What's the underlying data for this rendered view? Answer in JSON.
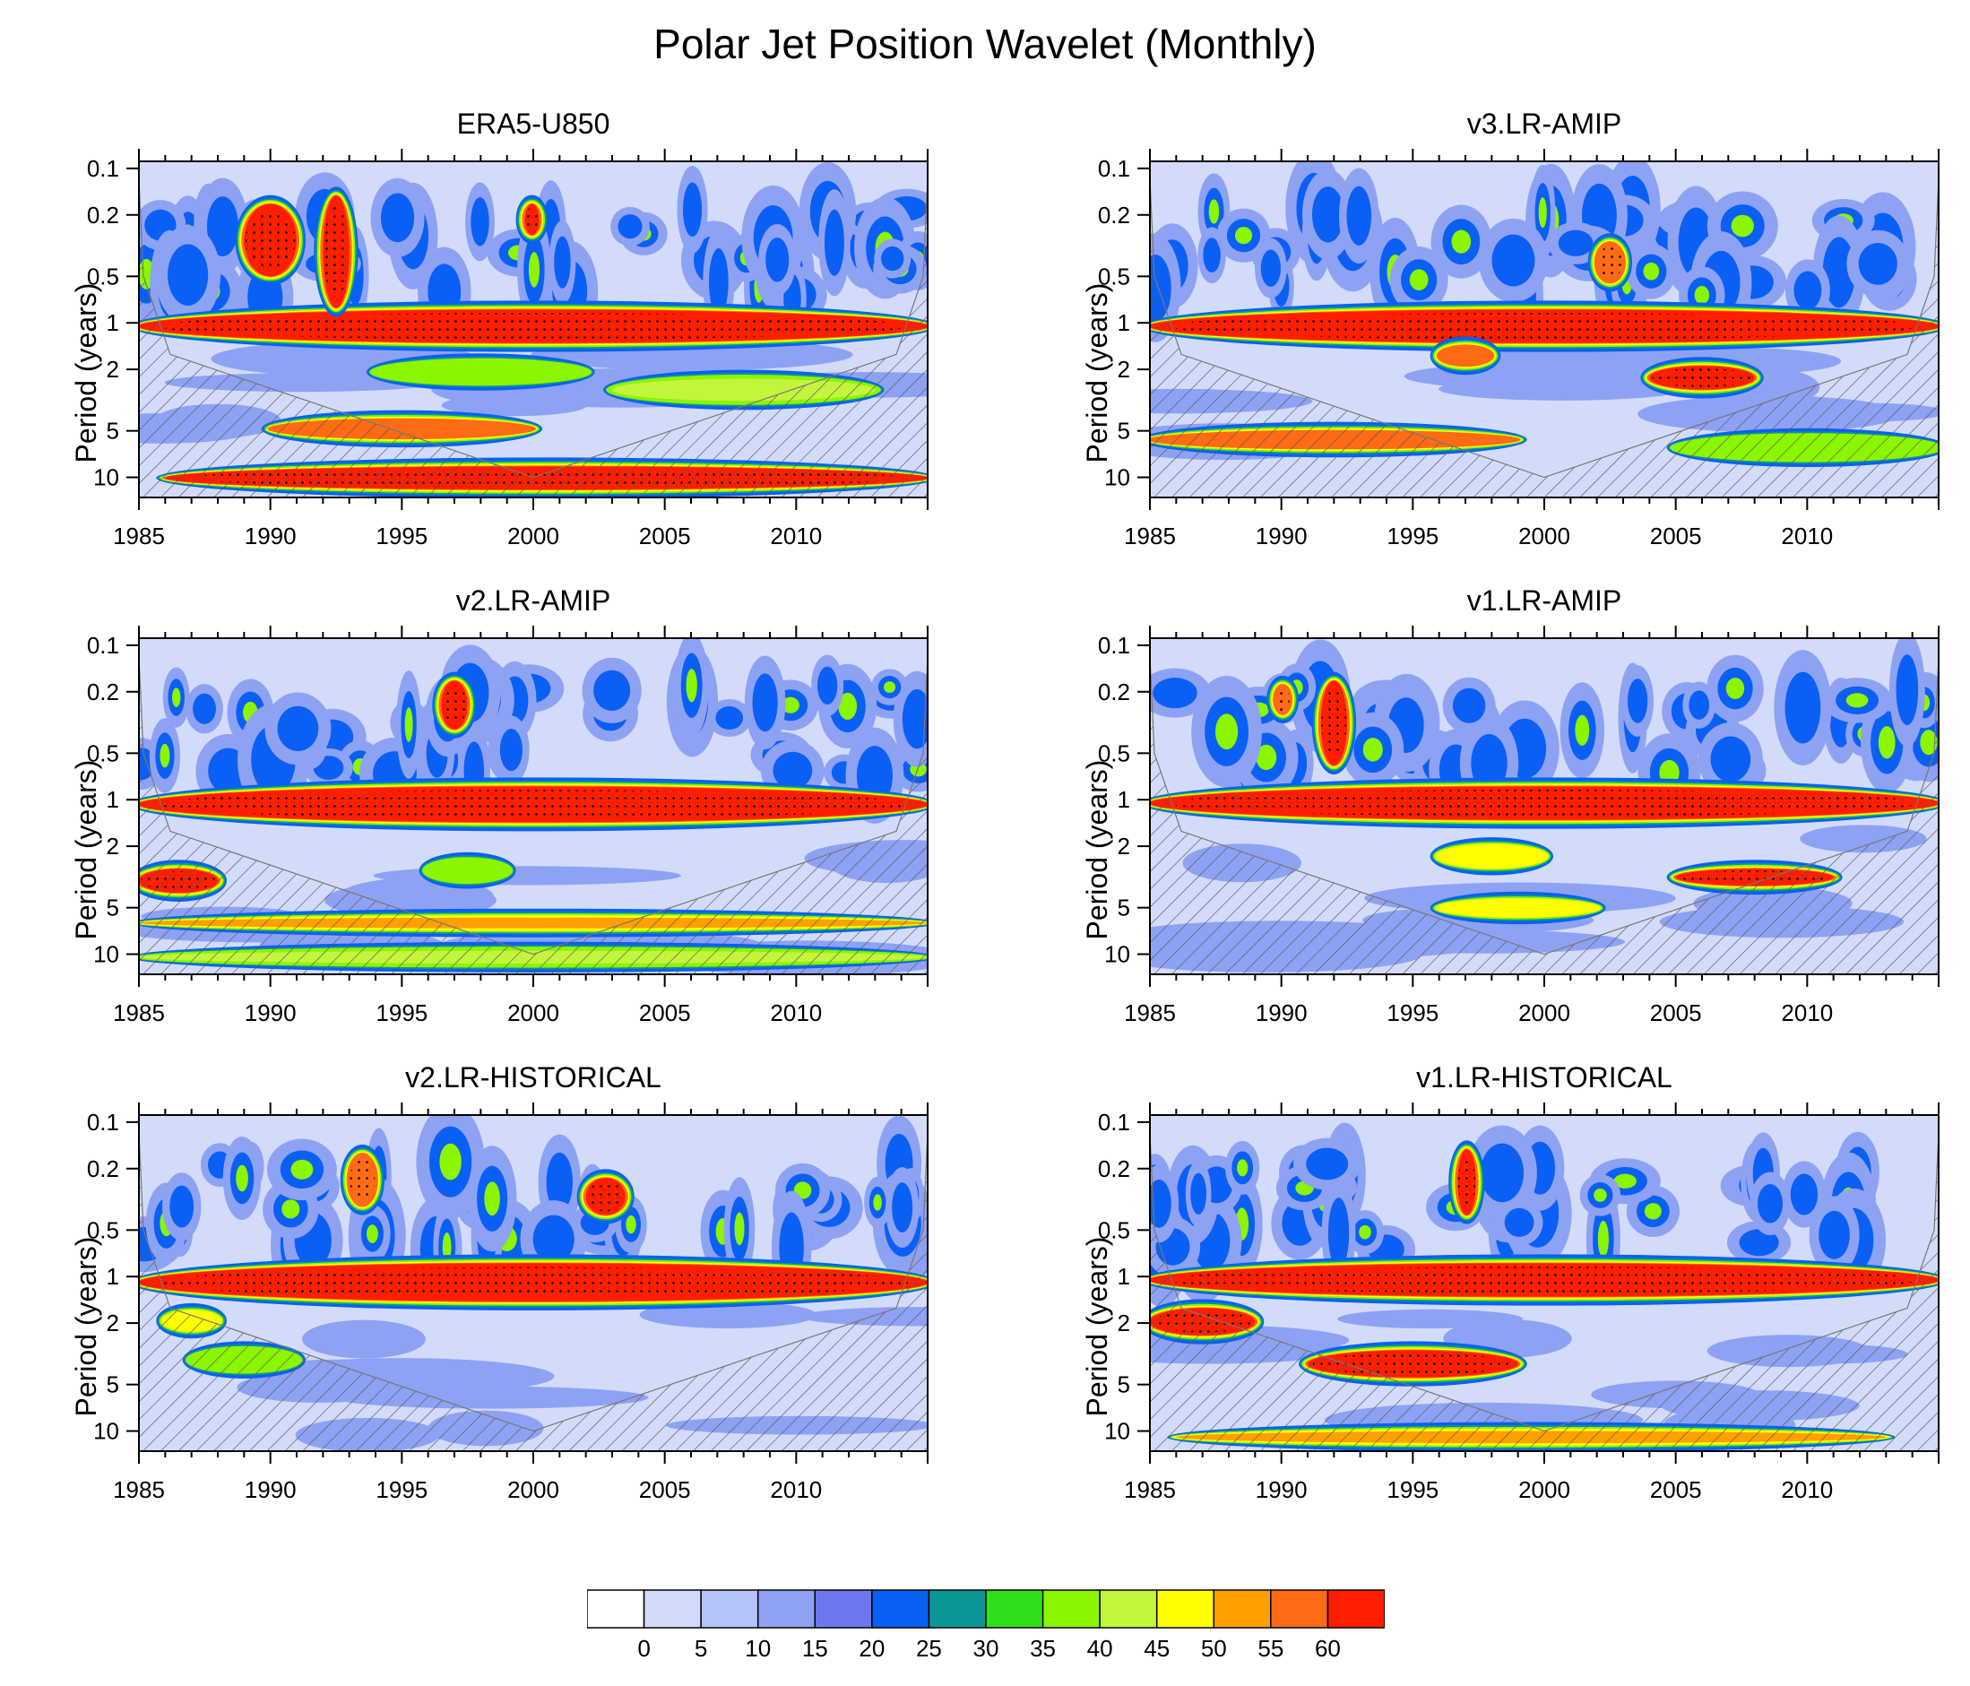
{
  "title": "Polar Jet Position Wavelet (Monthly)",
  "chart_data": {
    "type": "heatmap",
    "title": "Polar Jet Position Wavelet (Monthly)",
    "xlabel": "",
    "ylabel": "Period (years)",
    "xlim": [
      1985,
      2015
    ],
    "x_ticks": [
      "1985",
      "1990",
      "1995",
      "2000",
      "2005",
      "2010"
    ],
    "y_ticks": [
      "0.1",
      "0.2",
      "0.5",
      "1",
      "2",
      "5",
      "10"
    ],
    "y_tick_values": [
      0.1,
      0.2,
      0.5,
      1,
      2,
      5,
      10
    ],
    "ylim": [
      0.1,
      13
    ],
    "y_scale": "log",
    "colorbar": {
      "levels": [
        "0",
        "5",
        "10",
        "15",
        "20",
        "25",
        "30",
        "35",
        "40",
        "45",
        "50",
        "55",
        "60"
      ],
      "colors": [
        "#ffffff",
        "#d2dcfa",
        "#b4c3f8",
        "#8ea2f4",
        "#6e78ee",
        "#0a5ff5",
        "#0a9696",
        "#2ee01a",
        "#8cf500",
        "#c3f53c",
        "#ffff00",
        "#ffa000",
        "#ff6a14",
        "#ff1e00"
      ]
    },
    "panels": [
      {
        "name": "ERA5-U850",
        "annual_band_strength": 60,
        "features": [
          {
            "x0": 1985,
            "x1": 2015,
            "p0": 0.82,
            "p1": 1.35,
            "v": 62
          },
          {
            "x0": 1989,
            "x1": 1991,
            "p0": 0.17,
            "p1": 0.5,
            "v": 62
          },
          {
            "x0": 1992,
            "x1": 1993,
            "p0": 0.15,
            "p1": 0.8,
            "v": 62
          },
          {
            "x0": 1999.7,
            "x1": 2000.2,
            "p0": 0.17,
            "p1": 0.27,
            "v": 62
          },
          {
            "x0": 1990,
            "x1": 2000,
            "p0": 4.2,
            "p1": 5.6,
            "v": 55
          },
          {
            "x0": 1986,
            "x1": 2015,
            "p0": 8.5,
            "p1": 12,
            "v": 60
          },
          {
            "x0": 1994,
            "x1": 2002,
            "p0": 1.8,
            "p1": 2.4,
            "v": 35
          },
          {
            "x0": 2003,
            "x1": 2013,
            "p0": 2.3,
            "p1": 3.2,
            "v": 42
          }
        ]
      },
      {
        "name": "v3.LR-AMIP",
        "annual_band_strength": 60,
        "features": [
          {
            "x0": 1985,
            "x1": 2015,
            "p0": 0.82,
            "p1": 1.35,
            "v": 62
          },
          {
            "x0": 1996,
            "x1": 1998,
            "p0": 1.4,
            "p1": 1.9,
            "v": 55
          },
          {
            "x0": 2004,
            "x1": 2008,
            "p0": 1.9,
            "p1": 2.7,
            "v": 60
          },
          {
            "x0": 1985,
            "x1": 1999,
            "p0": 5.0,
            "p1": 6.5,
            "v": 55
          },
          {
            "x0": 2005,
            "x1": 2015,
            "p0": 5.5,
            "p1": 7.5,
            "v": 38
          },
          {
            "x0": 2002,
            "x1": 2003,
            "p0": 0.3,
            "p1": 0.55,
            "v": 58
          }
        ]
      },
      {
        "name": "v2.LR-AMIP",
        "annual_band_strength": 60,
        "features": [
          {
            "x0": 1985,
            "x1": 2015,
            "p0": 0.82,
            "p1": 1.4,
            "v": 62
          },
          {
            "x0": 1996.5,
            "x1": 1997.5,
            "p0": 0.17,
            "p1": 0.35,
            "v": 62
          },
          {
            "x0": 1985,
            "x1": 1988,
            "p0": 2.8,
            "p1": 4.0,
            "v": 60
          },
          {
            "x0": 1985,
            "x1": 2015,
            "p0": 5.8,
            "p1": 6.8,
            "v": 50
          },
          {
            "x0": 1985,
            "x1": 2015,
            "p0": 9.5,
            "p1": 11.5,
            "v": 40
          },
          {
            "x0": 1996,
            "x1": 1999,
            "p0": 2.5,
            "p1": 3.3,
            "v": 35
          }
        ]
      },
      {
        "name": "v1.LR-AMIP",
        "annual_band_strength": 60,
        "features": [
          {
            "x0": 1985,
            "x1": 2015,
            "p0": 0.82,
            "p1": 1.35,
            "v": 62
          },
          {
            "x0": 1991.5,
            "x1": 1992.5,
            "p0": 0.17,
            "p1": 0.6,
            "v": 62
          },
          {
            "x0": 1989.8,
            "x1": 1990.3,
            "p0": 0.18,
            "p1": 0.28,
            "v": 58
          },
          {
            "x0": 2005,
            "x1": 2011,
            "p0": 2.8,
            "p1": 3.6,
            "v": 62
          },
          {
            "x0": 1996,
            "x1": 2000,
            "p0": 2.0,
            "p1": 2.7,
            "v": 48
          },
          {
            "x0": 1996,
            "x1": 2002,
            "p0": 4.5,
            "p1": 5.6,
            "v": 48
          }
        ]
      },
      {
        "name": "v2.LR-HISTORICAL",
        "annual_band_strength": 60,
        "features": [
          {
            "x0": 1985,
            "x1": 2015,
            "p0": 0.82,
            "p1": 1.45,
            "v": 62
          },
          {
            "x0": 2002,
            "x1": 2003.5,
            "p0": 0.23,
            "p1": 0.4,
            "v": 60
          },
          {
            "x0": 1993,
            "x1": 1994,
            "p0": 0.16,
            "p1": 0.35,
            "v": 58
          },
          {
            "x0": 1987,
            "x1": 1991,
            "p0": 3.0,
            "p1": 4.0,
            "v": 38
          },
          {
            "x0": 1986,
            "x1": 1988,
            "p0": 1.7,
            "p1": 2.2,
            "v": 45
          }
        ]
      },
      {
        "name": "v1.LR-HISTORICAL",
        "annual_band_strength": 60,
        "features": [
          {
            "x0": 1985,
            "x1": 2015,
            "p0": 0.82,
            "p1": 1.35,
            "v": 62
          },
          {
            "x0": 1985,
            "x1": 1989,
            "p0": 1.6,
            "p1": 2.4,
            "v": 60
          },
          {
            "x0": 1991,
            "x1": 1999,
            "p0": 3.0,
            "p1": 4.5,
            "v": 62
          },
          {
            "x0": 1996.7,
            "x1": 1997.4,
            "p0": 0.15,
            "p1": 0.4,
            "v": 62
          },
          {
            "x0": 1986,
            "x1": 2013,
            "p0": 10,
            "p1": 12,
            "v": 52
          }
        ]
      }
    ]
  }
}
